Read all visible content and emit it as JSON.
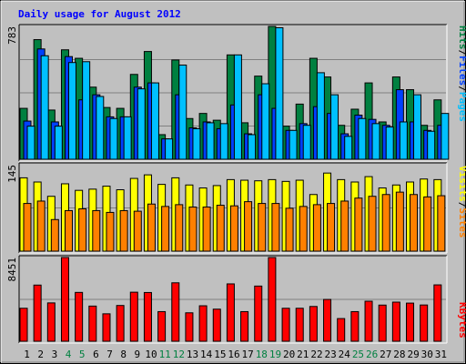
{
  "title": "Daily usage for August 2012",
  "colors": {
    "background": "#c0c0c0",
    "title": "#0000ff",
    "pages": "#00c0ff",
    "files": "#0040ff",
    "hits": "#008040",
    "visits": "#ffff00",
    "sites": "#ff8000",
    "kbytes": "#ff0000",
    "weekend_label": "#008040",
    "weekday_label": "#000000",
    "grid": "#808080"
  },
  "legend": {
    "pages": "Pages",
    "files": "Files",
    "hits": "Hits",
    "visits": "Visits",
    "sites": "Sites",
    "kbytes": "KBytes",
    "sep": "/"
  },
  "chart_data": [
    {
      "type": "bar",
      "title": "Daily usage for August 2012",
      "ymax_label": "783",
      "ylim": [
        0,
        783
      ],
      "categories": [
        "1",
        "2",
        "3",
        "4",
        "5",
        "6",
        "7",
        "8",
        "9",
        "10",
        "11",
        "12",
        "13",
        "14",
        "15",
        "16",
        "17",
        "18",
        "19",
        "20",
        "21",
        "22",
        "23",
        "24",
        "25",
        "26",
        "27",
        "28",
        "29",
        "30",
        "31"
      ],
      "weekend_days": [
        "4",
        "5",
        "11",
        "12",
        "18",
        "19",
        "25",
        "26"
      ],
      "series": [
        {
          "name": "Hits",
          "values": [
            300,
            705,
            290,
            645,
            595,
            425,
            305,
            300,
            500,
            635,
            145,
            585,
            240,
            270,
            230,
            615,
            215,
            490,
            783,
            195,
            325,
            595,
            485,
            200,
            295,
            450,
            220,
            485,
            410,
            200,
            350
          ]
        },
        {
          "name": "Files",
          "values": [
            225,
            650,
            220,
            605,
            350,
            380,
            250,
            250,
            425,
            450,
            120,
            380,
            185,
            220,
            180,
            320,
            150,
            380,
            300,
            170,
            210,
            310,
            270,
            150,
            260,
            235,
            200,
            410,
            220,
            170,
            200
          ]
        },
        {
          "name": "Pages",
          "values": [
            195,
            610,
            195,
            570,
            575,
            370,
            240,
            250,
            415,
            450,
            120,
            555,
            180,
            215,
            210,
            615,
            145,
            445,
            775,
            170,
            200,
            510,
            380,
            135,
            240,
            210,
            190,
            220,
            380,
            165,
            270
          ]
        }
      ]
    },
    {
      "type": "bar",
      "ymax_label": "145",
      "ylim": [
        0,
        145
      ],
      "categories": [
        "1",
        "2",
        "3",
        "4",
        "5",
        "6",
        "7",
        "8",
        "9",
        "10",
        "11",
        "12",
        "13",
        "14",
        "15",
        "16",
        "17",
        "18",
        "19",
        "20",
        "21",
        "22",
        "23",
        "24",
        "25",
        "26",
        "27",
        "28",
        "29",
        "30",
        "31"
      ],
      "series": [
        {
          "name": "Visits",
          "values": [
            123,
            116,
            92,
            113,
            102,
            104,
            109,
            103,
            122,
            128,
            112,
            123,
            111,
            106,
            110,
            120,
            119,
            118,
            120,
            117,
            119,
            95,
            131,
            120,
            116,
            125,
            106,
            111,
            116,
            121,
            120
          ]
        },
        {
          "name": "Sites",
          "values": [
            80,
            84,
            53,
            68,
            71,
            68,
            65,
            68,
            67,
            79,
            75,
            78,
            74,
            74,
            77,
            76,
            83,
            80,
            80,
            72,
            75,
            78,
            80,
            84,
            89,
            92,
            95,
            99,
            95,
            91,
            93
          ]
        }
      ]
    },
    {
      "type": "bar",
      "ymax_label": "8451",
      "ylim": [
        0,
        8451
      ],
      "categories": [
        "1",
        "2",
        "3",
        "4",
        "5",
        "6",
        "7",
        "8",
        "9",
        "10",
        "11",
        "12",
        "13",
        "14",
        "15",
        "16",
        "17",
        "18",
        "19",
        "20",
        "21",
        "22",
        "23",
        "24",
        "25",
        "26",
        "27",
        "28",
        "29",
        "30",
        "31"
      ],
      "series": [
        {
          "name": "KBytes",
          "values": [
            3330,
            5670,
            3870,
            8451,
            4930,
            3550,
            2770,
            3610,
            4950,
            4920,
            2990,
            5900,
            2870,
            3580,
            3240,
            5790,
            2990,
            5570,
            8451,
            3330,
            3330,
            3510,
            4220,
            2290,
            2990,
            4040,
            3650,
            3950,
            3850,
            3660,
            5690
          ]
        }
      ]
    }
  ]
}
